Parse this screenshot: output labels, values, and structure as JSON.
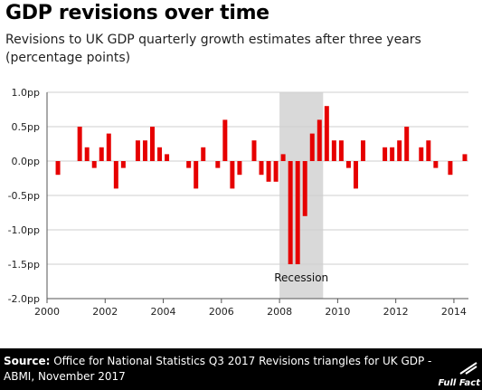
{
  "header": {
    "title": "GDP revisions over time",
    "subtitle": "Revisions to UK GDP quarterly growth estimates after three years (percentage points)"
  },
  "footer": {
    "source_label": "Source:",
    "source_text": " Office for National Statistics Q3 2017 Revisions triangles for UK GDP - ABMI, November 2017",
    "brand": "Full Fact"
  },
  "colors": {
    "bar": "#e60000",
    "shading": "#d9d9d9",
    "footer_bg": "#000000"
  },
  "chart_data": {
    "type": "bar",
    "title": "GDP revisions over time",
    "subtitle": "Revisions to UK GDP quarterly growth estimates after three years (percentage points)",
    "ylim": [
      -2.0,
      1.0
    ],
    "y_ticks": [
      {
        "value": 1.0,
        "label": "1.0pp"
      },
      {
        "value": 0.5,
        "label": "0.5pp"
      },
      {
        "value": 0.0,
        "label": "0.0pp"
      },
      {
        "value": -0.5,
        "label": "-0.5pp"
      },
      {
        "value": -1.0,
        "label": "-1.0pp"
      },
      {
        "value": -1.5,
        "label": "-1.5pp"
      },
      {
        "value": -2.0,
        "label": "-2.0pp"
      }
    ],
    "xlim": [
      2000,
      2014.5
    ],
    "x_ticks": [
      {
        "value": 2000,
        "label": "2000"
      },
      {
        "value": 2002,
        "label": "2002"
      },
      {
        "value": 2004,
        "label": "2004"
      },
      {
        "value": 2006,
        "label": "2006"
      },
      {
        "value": 2008,
        "label": "2008"
      },
      {
        "value": 2010,
        "label": "2010"
      },
      {
        "value": 2012,
        "label": "2012"
      },
      {
        "value": 2014,
        "label": "2014"
      }
    ],
    "grid": true,
    "shaded_region": {
      "label": "Recession",
      "from": 2008.0,
      "to": 2009.5
    },
    "categories": [
      "2000 Q1",
      "2000 Q2",
      "2000 Q3",
      "2000 Q4",
      "2001 Q1",
      "2001 Q2",
      "2001 Q3",
      "2001 Q4",
      "2002 Q1",
      "2002 Q2",
      "2002 Q3",
      "2002 Q4",
      "2003 Q1",
      "2003 Q2",
      "2003 Q3",
      "2003 Q4",
      "2004 Q1",
      "2004 Q2",
      "2004 Q3",
      "2004 Q4",
      "2005 Q1",
      "2005 Q2",
      "2005 Q3",
      "2005 Q4",
      "2006 Q1",
      "2006 Q2",
      "2006 Q3",
      "2006 Q4",
      "2007 Q1",
      "2007 Q2",
      "2007 Q3",
      "2007 Q4",
      "2008 Q1",
      "2008 Q2",
      "2008 Q3",
      "2008 Q4",
      "2009 Q1",
      "2009 Q2",
      "2009 Q3",
      "2009 Q4",
      "2010 Q1",
      "2010 Q2",
      "2010 Q3",
      "2010 Q4",
      "2011 Q1",
      "2011 Q2",
      "2011 Q3",
      "2011 Q4",
      "2012 Q1",
      "2012 Q2",
      "2012 Q3",
      "2012 Q4",
      "2013 Q1",
      "2013 Q2",
      "2013 Q3",
      "2013 Q4",
      "2014 Q1",
      "2014 Q2"
    ],
    "values": [
      0.0,
      -0.2,
      0.0,
      0.0,
      0.5,
      0.2,
      -0.1,
      0.2,
      0.4,
      -0.4,
      -0.1,
      0.0,
      0.3,
      0.3,
      0.5,
      0.2,
      0.1,
      0.0,
      0.0,
      -0.1,
      -0.4,
      0.2,
      0.0,
      -0.1,
      0.6,
      -0.4,
      -0.2,
      0.0,
      0.3,
      -0.2,
      -0.3,
      -0.3,
      0.1,
      -1.5,
      -1.5,
      -0.8,
      0.4,
      0.6,
      0.8,
      0.3,
      0.3,
      -0.1,
      -0.4,
      0.3,
      0.0,
      0.0,
      0.2,
      0.2,
      0.3,
      0.5,
      0.0,
      0.2,
      0.3,
      -0.1,
      0.0,
      -0.2,
      0.0,
      0.1
    ]
  }
}
